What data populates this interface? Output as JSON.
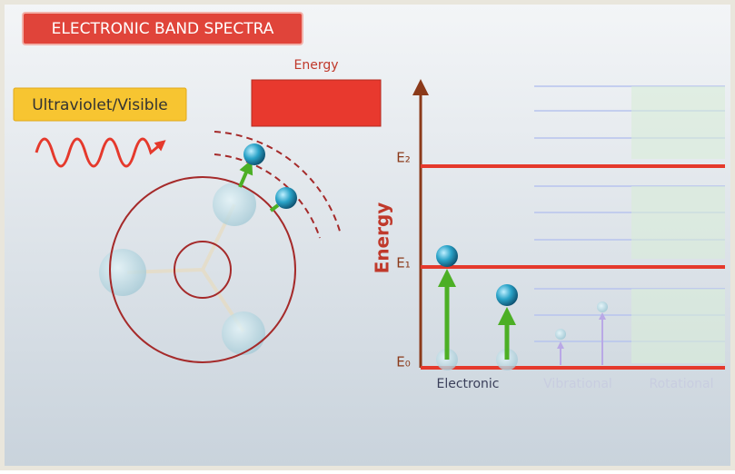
{
  "header": {
    "title": "ELECTRONIC BAND SPECTRA"
  },
  "energy_box": {
    "label": "Energy"
  },
  "source": {
    "label": "Ultraviolet/Visible"
  },
  "diagram": {
    "axis_label": "Energy",
    "levels": [
      "E₂",
      "E₁",
      "E₀"
    ],
    "transitions": [
      "Electronic",
      "Vibrational",
      "Rotational"
    ]
  }
}
